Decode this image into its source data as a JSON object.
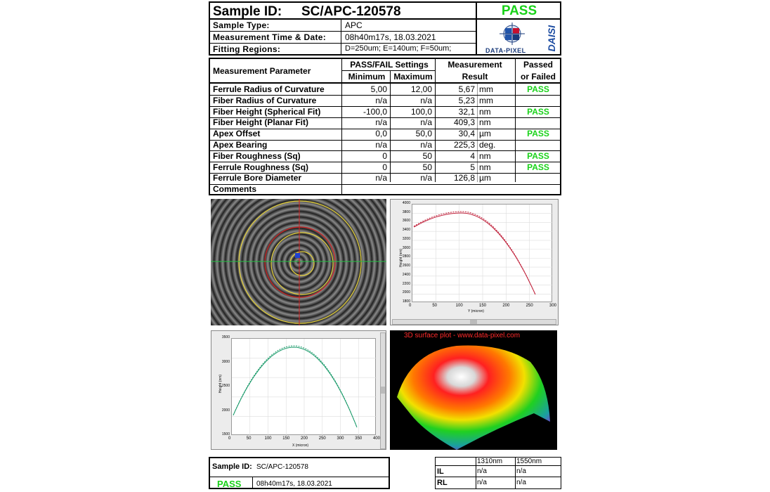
{
  "header": {
    "sample_id_label": "Sample ID:",
    "sample_id_value": "SC/APC-120578",
    "status": "PASS",
    "sample_type_label": "Sample Type:",
    "sample_type_value": "APC",
    "meas_time_label": "Measurement Time & Date:",
    "meas_time_value": "08h40m17s, 18.03.2021",
    "fitting_label": "Fitting Regions:",
    "fitting_value": "D=250um;  E=140um;  F=50um;",
    "logo_text": "DATA-PIXEL",
    "logo_side": "DAISI"
  },
  "table": {
    "col_param": "Measurement Parameter",
    "col_settings": "PASS/FAIL Settings",
    "col_min": "Minimum",
    "col_max": "Maximum",
    "col_result_1": "Measurement",
    "col_result_2": "Result",
    "col_pf_1": "Passed",
    "col_pf_2": "or Failed",
    "rows": [
      {
        "param": "Ferrule Radius of Curvature",
        "min": "5,00",
        "max": "12,00",
        "result": "5,67",
        "unit": "mm",
        "status": "PASS"
      },
      {
        "param": "Fiber Radius of Curvature",
        "min": "n/a",
        "max": "n/a",
        "result": "5,23",
        "unit": "mm",
        "status": ""
      },
      {
        "param": "Fiber Height (Spherical Fit)",
        "min": "-100,0",
        "max": "100,0",
        "result": "32,1",
        "unit": "nm",
        "status": "PASS"
      },
      {
        "param": "Fiber Height (Planar Fit)",
        "min": "n/a",
        "max": "n/a",
        "result": "409,3",
        "unit": "nm",
        "status": ""
      },
      {
        "param": "Apex Offset",
        "min": "0,0",
        "max": "50,0",
        "result": "30,4",
        "unit": "µm",
        "status": "PASS"
      },
      {
        "param": "Apex Bearing",
        "min": "n/a",
        "max": "n/a",
        "result": "225,3",
        "unit": "deg.",
        "status": ""
      },
      {
        "param": "Fiber Roughness (Sq)",
        "min": "0",
        "max": "50",
        "result": "4",
        "unit": "nm",
        "status": "PASS"
      },
      {
        "param": "Ferrule Roughness (Sq)",
        "min": "0",
        "max": "50",
        "result": "5",
        "unit": "nm",
        "status": "PASS"
      },
      {
        "param": "Ferrule Bore Diameter",
        "min": "n/a",
        "max": "n/a",
        "result": "126,8",
        "unit": "µm",
        "status": ""
      },
      {
        "param": "Comments",
        "min": "",
        "max": "",
        "result": "",
        "unit": "",
        "status": ""
      }
    ]
  },
  "chart_y": {
    "xlabel": "Y (micron)",
    "ylabel": "Height (nm)",
    "xticks": [
      "0",
      "50",
      "100",
      "150",
      "200",
      "250",
      "300"
    ],
    "yticks": [
      "1800",
      "2000",
      "2200",
      "2400",
      "2600",
      "2800",
      "3000",
      "3200",
      "3400",
      "3600",
      "3800",
      "4000"
    ]
  },
  "chart_x": {
    "xlabel": "X (micron)",
    "ylabel": "Height (nm)",
    "xticks": [
      "0",
      "50",
      "100",
      "150",
      "200",
      "250",
      "300",
      "350",
      "400"
    ],
    "yticks": [
      "1500",
      "2000",
      "2500",
      "3000",
      "3500"
    ]
  },
  "surface_title": "3D surface plot - www.data-pixel.com",
  "footer": {
    "sample_id_label": "Sample ID:",
    "sample_id_value": "SC/APC-120578",
    "status": "PASS",
    "time_value": "08h40m17s, 18.03.2021",
    "col_1310": "1310nm",
    "col_1550": "1550nm",
    "row_il": "IL",
    "row_rl": "RL",
    "il_1310": "n/a",
    "il_1550": "n/a",
    "rl_1310": "n/a",
    "rl_1550": "n/a"
  },
  "colors": {
    "pass": "#19d219",
    "fit_red": "#c0203a",
    "fit_green": "#1a9a6a"
  }
}
